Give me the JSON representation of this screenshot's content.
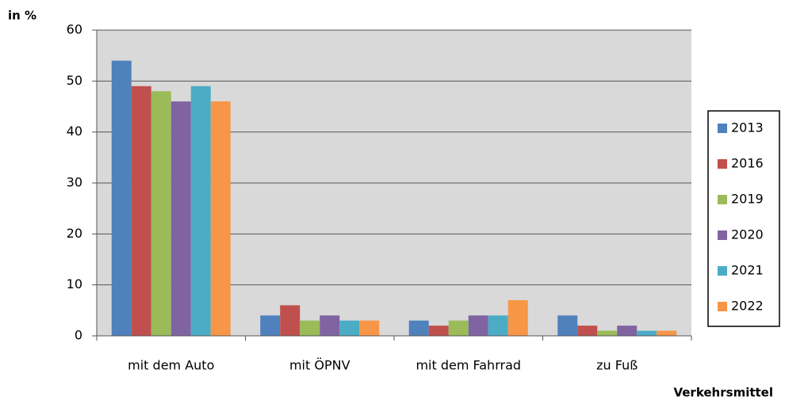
{
  "chart_data": {
    "type": "bar",
    "y_label": "in %",
    "x_label": "Verkehrsmittel",
    "categories": [
      "mit dem Auto",
      "mit ÖPNV",
      "mit dem Fahrrad",
      "zu Fuß"
    ],
    "series": [
      {
        "name": "2013",
        "color": "#4f81bd",
        "values": [
          54,
          4,
          3,
          4
        ]
      },
      {
        "name": "2016",
        "color": "#c0504d",
        "values": [
          49,
          6,
          2,
          2
        ]
      },
      {
        "name": "2019",
        "color": "#9bbb59",
        "values": [
          48,
          3,
          3,
          1
        ]
      },
      {
        "name": "2020",
        "color": "#8064a2",
        "values": [
          46,
          4,
          4,
          2
        ]
      },
      {
        "name": "2021",
        "color": "#4bacc6",
        "values": [
          49,
          3,
          4,
          1
        ]
      },
      {
        "name": "2022",
        "color": "#f79646",
        "values": [
          46,
          3,
          7,
          1
        ]
      }
    ],
    "ylim": [
      0,
      60
    ],
    "yticks": [
      0,
      10,
      20,
      30,
      40,
      50,
      60
    ],
    "grid": true,
    "legend": "right"
  }
}
